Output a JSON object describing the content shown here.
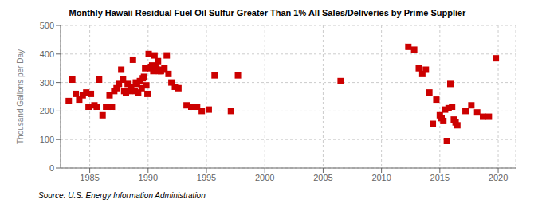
{
  "chart_data": {
    "type": "scatter",
    "title": "Monthly Hawaii Residual Fuel Oil Sulfur Greater Than 1% All Sales/Deliveries by Prime Supplier",
    "ylabel": "Thousand Gallons per Day",
    "source": "Source: U.S. Energy Information Administration",
    "color": "#cc0000",
    "marker": "square",
    "grid": true,
    "xlim": [
      1982.5,
      2021.5
    ],
    "ylim": [
      0,
      500
    ],
    "xticks": [
      1985,
      1990,
      1995,
      2000,
      2005,
      2010,
      2015,
      2020
    ],
    "yticks": [
      0,
      100,
      200,
      300,
      400,
      500
    ],
    "x": [
      1983.2,
      1983.5,
      1983.8,
      1984.1,
      1984.4,
      1984.7,
      1984.9,
      1985.1,
      1985.4,
      1985.6,
      1985.8,
      1986.1,
      1986.4,
      1986.7,
      1986.9,
      1987.1,
      1987.3,
      1987.5,
      1987.7,
      1987.85,
      1987.95,
      1988.1,
      1988.25,
      1988.4,
      1988.55,
      1988.7,
      1988.85,
      1988.95,
      1989.05,
      1989.15,
      1989.3,
      1989.45,
      1989.55,
      1989.65,
      1989.75,
      1989.85,
      1989.95,
      1990.05,
      1990.15,
      1990.25,
      1990.35,
      1990.45,
      1990.55,
      1990.65,
      1990.75,
      1990.85,
      1990.95,
      1991.1,
      1991.25,
      1991.4,
      1991.6,
      1991.75,
      1992.0,
      1992.3,
      1992.6,
      1993.3,
      1993.7,
      1994.2,
      1994.6,
      1995.2,
      1995.7,
      1997.1,
      1997.7,
      2006.5,
      2012.3,
      2012.8,
      2013.2,
      2013.5,
      2013.8,
      2014.1,
      2014.4,
      2014.7,
      2015.0,
      2015.15,
      2015.3,
      2015.45,
      2015.6,
      2015.75,
      2015.9,
      2016.05,
      2016.2,
      2016.35,
      2016.5,
      2017.2,
      2017.7,
      2018.2,
      2018.7,
      2019.2,
      2019.8
    ],
    "values": [
      235,
      310,
      260,
      240,
      255,
      265,
      215,
      260,
      220,
      215,
      310,
      185,
      215,
      255,
      215,
      270,
      280,
      295,
      345,
      310,
      270,
      265,
      295,
      270,
      285,
      380,
      270,
      300,
      295,
      265,
      305,
      280,
      315,
      320,
      350,
      290,
      260,
      400,
      350,
      355,
      360,
      340,
      395,
      355,
      345,
      375,
      340,
      340,
      345,
      350,
      395,
      330,
      300,
      285,
      280,
      220,
      215,
      215,
      200,
      205,
      325,
      200,
      325,
      305,
      425,
      415,
      350,
      330,
      345,
      265,
      155,
      240,
      185,
      175,
      165,
      205,
      95,
      210,
      295,
      215,
      170,
      160,
      150,
      200,
      220,
      195,
      180,
      180,
      385
    ]
  }
}
